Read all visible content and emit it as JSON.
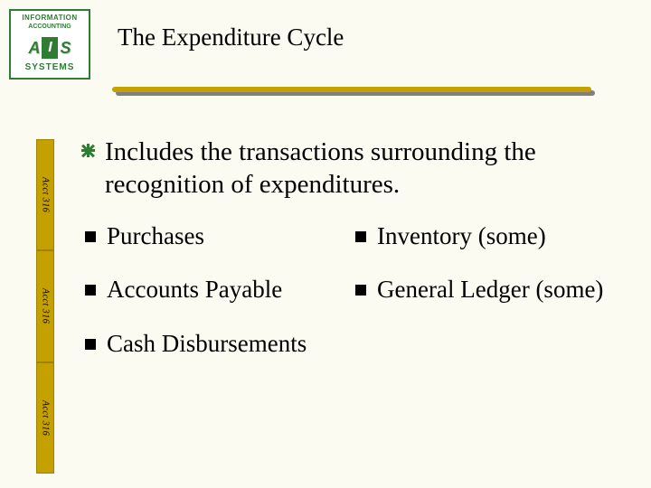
{
  "logo": {
    "top_arc": "INFORMATION",
    "top_arc2": "ACCOUNTING",
    "letter_a": "A",
    "letter_i": "I",
    "letter_s": "S",
    "bottom": "SYSTEMS"
  },
  "title": "The Expenditure Cycle",
  "underline": {
    "color": "#c4a000",
    "shadow_color": "#808080"
  },
  "sidebar": {
    "labels": [
      "Acct 316",
      "Acct 316",
      "Acct 316"
    ],
    "fill": "#c4a000"
  },
  "intro": {
    "text": "Includes the transactions surrounding the recognition of expenditures.",
    "bullet_color": "#2e7d32"
  },
  "left_items": [
    "Purchases",
    "Accounts Payable",
    "Cash Disbursements"
  ],
  "right_items": [
    "Inventory (some)",
    "General Ledger (some)"
  ],
  "colors": {
    "background": "#fbfbf1",
    "text": "#000000",
    "accent_green": "#2e7d32",
    "accent_gold": "#c4a000"
  },
  "typography": {
    "title_fontsize": 27,
    "body_fontsize": 29,
    "sub_fontsize": 27,
    "title_font": "Garamond",
    "body_font": "Comic Sans MS"
  }
}
